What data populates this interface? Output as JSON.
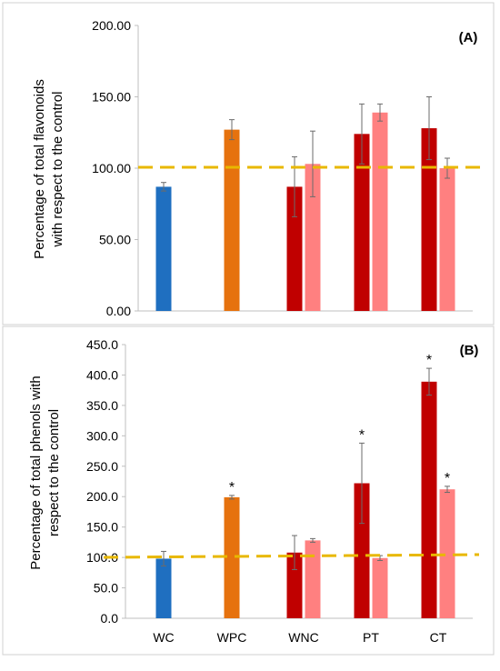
{
  "chart_data": [
    {
      "type": "bar",
      "panel_label": "(A)",
      "ylabel_lines": [
        "Percentage of total flavonoids",
        "with respect to the control"
      ],
      "ylim": [
        0,
        200
      ],
      "yticks": [
        "0.00",
        "50.00",
        "100.00",
        "150.00",
        "200.00"
      ],
      "ytick_values": [
        0,
        50,
        100,
        150,
        200
      ],
      "categories": [
        "WC",
        "WPC",
        "WNC",
        "PT",
        "CT"
      ],
      "reference_line": 100,
      "bars": [
        {
          "group": 0,
          "slot": "single",
          "value": 87,
          "err": 3,
          "color": "#1f6fc0",
          "star": false
        },
        {
          "group": 1,
          "slot": "single",
          "value": 127,
          "err": 7,
          "color": "#e6720e",
          "star": false
        },
        {
          "group": 2,
          "slot": "left",
          "value": 87,
          "err": 21,
          "color": "#c00000",
          "star": false
        },
        {
          "group": 2,
          "slot": "right",
          "value": 103,
          "err": 23,
          "color": "#ff8080",
          "star": false
        },
        {
          "group": 3,
          "slot": "left",
          "value": 124,
          "err": 21,
          "color": "#c00000",
          "star": false
        },
        {
          "group": 3,
          "slot": "right",
          "value": 139,
          "err": 6,
          "color": "#ff8080",
          "star": false
        },
        {
          "group": 4,
          "slot": "left",
          "value": 128,
          "err": 22,
          "color": "#c00000",
          "star": false
        },
        {
          "group": 4,
          "slot": "right",
          "value": 100,
          "err": 7,
          "color": "#ff8080",
          "star": false
        }
      ]
    },
    {
      "type": "bar",
      "panel_label": "(B)",
      "ylabel_lines": [
        "Percentage of total phenols with",
        "respect to the control"
      ],
      "ylim": [
        0,
        450
      ],
      "yticks": [
        "0.0",
        "50.0",
        "100.0",
        "150.0",
        "200.0",
        "250.0",
        "300.0",
        "350.0",
        "400.0",
        "450.0"
      ],
      "ytick_values": [
        0,
        50,
        100,
        150,
        200,
        250,
        300,
        350,
        400,
        450
      ],
      "categories": [
        "WC",
        "WPC",
        "WNC",
        "PT",
        "CT"
      ],
      "reference_line": 100,
      "star_symbol": "*",
      "bars": [
        {
          "group": 0,
          "slot": "single",
          "value": 98,
          "err": 12,
          "color": "#1f6fc0",
          "star": false
        },
        {
          "group": 1,
          "slot": "single",
          "value": 199,
          "err": 3,
          "color": "#e6720e",
          "star": true
        },
        {
          "group": 2,
          "slot": "left",
          "value": 108,
          "err": 28,
          "color": "#c00000",
          "star": false
        },
        {
          "group": 2,
          "slot": "right",
          "value": 128,
          "err": 3,
          "color": "#ff8080",
          "star": false
        },
        {
          "group": 3,
          "slot": "left",
          "value": 222,
          "err": 66,
          "color": "#c00000",
          "star": true
        },
        {
          "group": 3,
          "slot": "right",
          "value": 99,
          "err": 4,
          "color": "#ff8080",
          "star": false
        },
        {
          "group": 4,
          "slot": "left",
          "value": 389,
          "err": 22,
          "color": "#c00000",
          "star": true
        },
        {
          "group": 4,
          "slot": "right",
          "value": 212,
          "err": 5,
          "color": "#ff8080",
          "star": true
        }
      ]
    }
  ],
  "colors": {
    "reference_line": "#e8b800",
    "axis": "#bfbfbf",
    "frame": "#d0d0d0",
    "error_bar": "#6b6b6b",
    "text": "#000000"
  }
}
